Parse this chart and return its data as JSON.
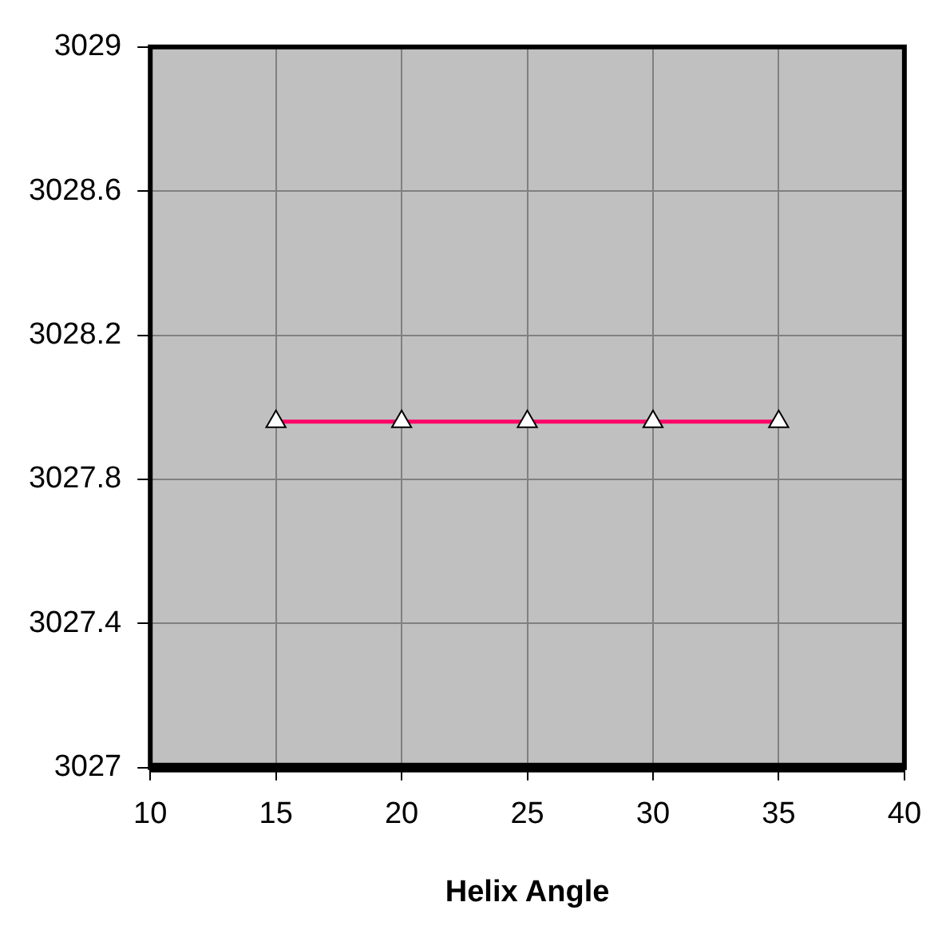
{
  "chart_data": {
    "type": "line",
    "xlabel": "Helix Angle",
    "x": [
      15,
      20,
      25,
      30,
      35
    ],
    "series": [
      {
        "color": "#ff0066",
        "values": [
          3027.96,
          3027.96,
          3027.96,
          3027.96,
          3027.96
        ]
      }
    ],
    "xlim": [
      10,
      40
    ],
    "xticks": [
      10,
      15,
      20,
      25,
      30,
      35,
      40
    ],
    "ylim": [
      3027,
      3029
    ],
    "yticks": [
      3027,
      3027.4,
      3027.8,
      3028.2,
      3028.6,
      3029
    ],
    "grid": true,
    "legend": false,
    "marker": "triangle",
    "line_style": "solid"
  }
}
